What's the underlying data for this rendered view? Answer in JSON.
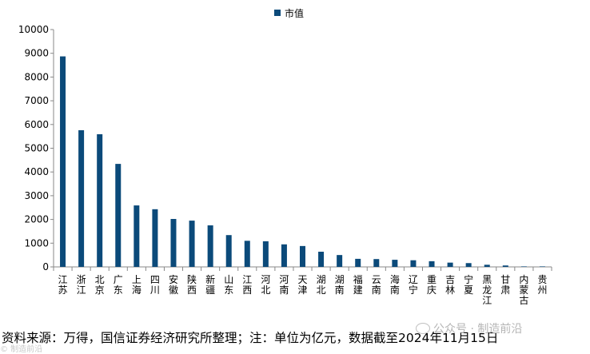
{
  "legend": {
    "label": "市值"
  },
  "chart_data": {
    "type": "bar",
    "title": "",
    "xlabel": "",
    "ylabel": "",
    "ylim": [
      0,
      10000
    ],
    "yticks": [
      0,
      1000,
      2000,
      3000,
      4000,
      5000,
      6000,
      7000,
      8000,
      9000,
      10000
    ],
    "grid": false,
    "legend_position": "top",
    "bar_color": "#0b4a7a",
    "categories": [
      "江苏",
      "浙江",
      "北京",
      "广东",
      "上海",
      "四川",
      "安徽",
      "陕西",
      "新疆",
      "山东",
      "江西",
      "河北",
      "河南",
      "天津",
      "湖北",
      "湖南",
      "福建",
      "云南",
      "海南",
      "辽宁",
      "重庆",
      "吉林",
      "宁夏",
      "黑龙江",
      "甘肃",
      "内蒙古",
      "贵州"
    ],
    "series": [
      {
        "name": "市值",
        "values": [
          8870,
          5760,
          5590,
          4340,
          2590,
          2430,
          2020,
          1950,
          1750,
          1340,
          1100,
          1080,
          950,
          880,
          640,
          500,
          340,
          330,
          300,
          280,
          240,
          180,
          160,
          90,
          60,
          15,
          5
        ]
      }
    ]
  },
  "footer": {
    "source": "资料来源：万得，国信证券经济研究所整理；注：单位为亿元，数据截至2024年11月15日"
  },
  "watermark": {
    "text": "公众号 · 制造前沿"
  },
  "corner_mark": {
    "text": "© 制造前沿"
  }
}
